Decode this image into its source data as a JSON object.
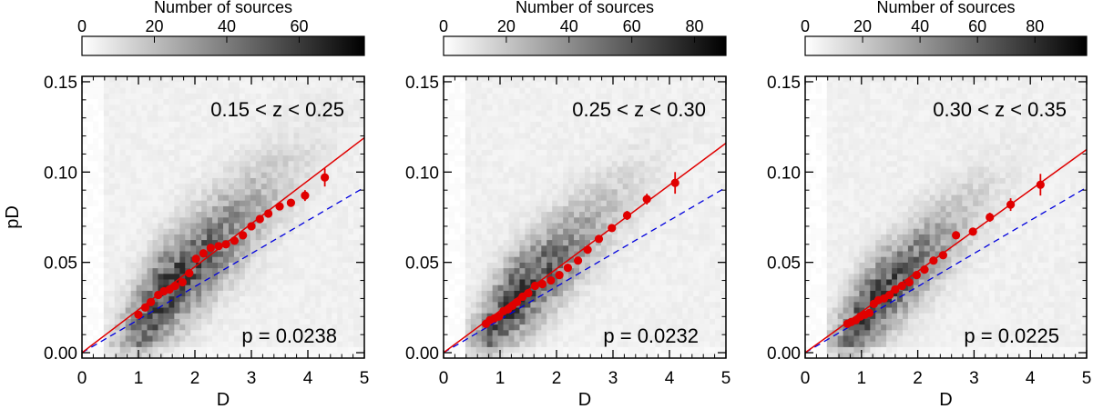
{
  "chart_data": [
    {
      "type": "scatter",
      "panel_label": "0.15 < z < 0.25",
      "p_label": "p = 0.0238",
      "xlabel": "D",
      "ylabel": "pD",
      "xlim": [
        0,
        5
      ],
      "ylim": [
        -0.003,
        0.153
      ],
      "x_ticks": [
        "0",
        "1",
        "2",
        "3",
        "4",
        "5"
      ],
      "y_ticks": [
        "0.00",
        "0.05",
        "0.10",
        "0.15"
      ],
      "colorbar": {
        "label": "Number of sources",
        "range": [
          0,
          78
        ],
        "ticks": [
          "0",
          "20",
          "40",
          "60"
        ]
      },
      "fit_line": {
        "slope": 0.0238,
        "color": "#e00000"
      },
      "reference_line": {
        "slope": 0.0183,
        "color": "#0000dd",
        "style": "dashed"
      },
      "points": {
        "x": [
          1.0,
          1.12,
          1.22,
          1.35,
          1.45,
          1.55,
          1.65,
          1.78,
          1.9,
          2.02,
          2.15,
          2.28,
          2.42,
          2.55,
          2.7,
          2.85,
          3.0,
          3.15,
          3.3,
          3.5,
          3.7,
          3.95,
          4.3
        ],
        "y": [
          0.021,
          0.025,
          0.028,
          0.032,
          0.034,
          0.035,
          0.037,
          0.039,
          0.044,
          0.052,
          0.055,
          0.058,
          0.059,
          0.06,
          0.062,
          0.065,
          0.07,
          0.074,
          0.077,
          0.081,
          0.083,
          0.087,
          0.097
        ],
        "err": [
          0.001,
          0.001,
          0.001,
          0.001,
          0.001,
          0.001,
          0.001,
          0.001,
          0.001,
          0.001,
          0.001,
          0.001,
          0.001,
          0.001,
          0.001,
          0.001,
          0.001,
          0.0015,
          0.0015,
          0.002,
          0.002,
          0.003,
          0.005
        ],
        "color": "#e00000"
      },
      "density": {
        "xc": 1.45,
        "yc": 0.033,
        "sx": 0.55,
        "sy": 0.022,
        "rho": 0.6,
        "seed": 11
      }
    },
    {
      "type": "scatter",
      "panel_label": "0.25 < z < 0.30",
      "p_label": "p = 0.0232",
      "xlabel": "D",
      "ylabel": "",
      "xlim": [
        0,
        5
      ],
      "ylim": [
        -0.003,
        0.153
      ],
      "x_ticks": [
        "0",
        "1",
        "2",
        "3",
        "4",
        "5"
      ],
      "y_ticks": [
        "0.00",
        "0.05",
        "0.10",
        "0.15"
      ],
      "colorbar": {
        "label": "Number of sources",
        "range": [
          0,
          90
        ],
        "ticks": [
          "0",
          "20",
          "40",
          "60",
          "80"
        ]
      },
      "fit_line": {
        "slope": 0.0232,
        "color": "#e00000"
      },
      "reference_line": {
        "slope": 0.0183,
        "color": "#0000dd",
        "style": "dashed"
      },
      "points": {
        "x": [
          0.75,
          0.82,
          0.9,
          0.98,
          1.06,
          1.14,
          1.22,
          1.3,
          1.4,
          1.5,
          1.62,
          1.75,
          1.9,
          2.05,
          2.2,
          2.38,
          2.55,
          2.75,
          2.98,
          3.25,
          3.6,
          4.1
        ],
        "y": [
          0.016,
          0.018,
          0.019,
          0.02,
          0.023,
          0.024,
          0.026,
          0.028,
          0.031,
          0.033,
          0.037,
          0.038,
          0.04,
          0.043,
          0.047,
          0.051,
          0.057,
          0.063,
          0.069,
          0.076,
          0.085,
          0.094
        ],
        "err": [
          0.001,
          0.001,
          0.001,
          0.001,
          0.001,
          0.001,
          0.001,
          0.001,
          0.001,
          0.001,
          0.001,
          0.001,
          0.001,
          0.001,
          0.001,
          0.001,
          0.001,
          0.0015,
          0.002,
          0.0025,
          0.003,
          0.006
        ],
        "color": "#e00000"
      },
      "density": {
        "xc": 1.2,
        "yc": 0.028,
        "sx": 0.5,
        "sy": 0.02,
        "rho": 0.6,
        "seed": 23
      }
    },
    {
      "type": "scatter",
      "panel_label": "0.30 < z < 0.35",
      "p_label": "p = 0.0225",
      "xlabel": "D",
      "ylabel": "",
      "xlim": [
        0,
        5
      ],
      "ylim": [
        -0.003,
        0.153
      ],
      "x_ticks": [
        "0",
        "1",
        "2",
        "3",
        "4",
        "5"
      ],
      "y_ticks": [
        "0.00",
        "0.05",
        "0.10",
        "0.15"
      ],
      "colorbar": {
        "label": "Number of sources",
        "range": [
          0,
          98
        ],
        "ticks": [
          "0",
          "20",
          "40",
          "60",
          "80"
        ]
      },
      "fit_line": {
        "slope": 0.0225,
        "color": "#e00000"
      },
      "reference_line": {
        "slope": 0.0183,
        "color": "#0000dd",
        "style": "dashed"
      },
      "points": {
        "x": [
          0.75,
          0.82,
          0.9,
          0.98,
          1.06,
          1.14,
          1.22,
          1.3,
          1.4,
          1.5,
          1.6,
          1.72,
          1.85,
          1.98,
          2.12,
          2.28,
          2.45,
          2.68,
          2.98,
          3.28,
          3.65,
          4.18
        ],
        "y": [
          0.016,
          0.017,
          0.018,
          0.02,
          0.021,
          0.022,
          0.027,
          0.029,
          0.03,
          0.032,
          0.035,
          0.037,
          0.039,
          0.043,
          0.046,
          0.051,
          0.054,
          0.065,
          0.067,
          0.075,
          0.082,
          0.093
        ],
        "err": [
          0.001,
          0.001,
          0.001,
          0.001,
          0.001,
          0.001,
          0.001,
          0.001,
          0.001,
          0.001,
          0.001,
          0.001,
          0.001,
          0.001,
          0.001,
          0.001,
          0.001,
          0.0015,
          0.002,
          0.0025,
          0.0035,
          0.006
        ],
        "color": "#e00000"
      },
      "density": {
        "xc": 1.15,
        "yc": 0.026,
        "sx": 0.48,
        "sy": 0.019,
        "rho": 0.6,
        "seed": 37
      }
    }
  ]
}
